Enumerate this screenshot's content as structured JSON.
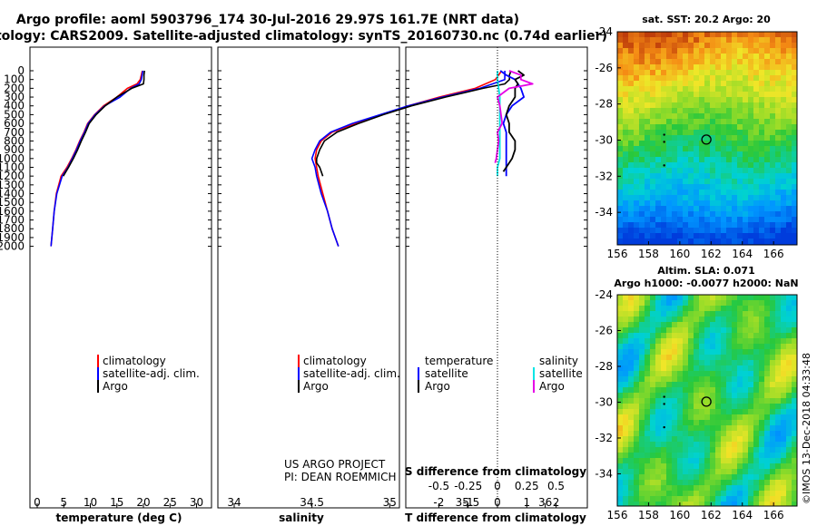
{
  "title_line1": "Argo profile: aoml 5903796_174 30-Jul-2016 29.97S 161.7E (NRT data)",
  "title_line2": "Climatology: CARS2009. Satellite-adjusted climatology: synTS_20160730.nc (0.74d earlier)",
  "colors": {
    "climatology": "#ff0000",
    "satellite": "#0000ff",
    "argo": "#000000",
    "sat_salinity": "#00e5e5",
    "argo_salinity": "#e600e6"
  },
  "depth_axis": {
    "ticks": [
      "0",
      "100",
      "200",
      "300",
      "400",
      "500",
      "600",
      "700",
      "800",
      "900",
      "1000",
      "1100",
      "1200",
      "1300",
      "1400",
      "1500",
      "1600",
      "1700",
      "1800",
      "1900",
      "2000"
    ]
  },
  "legend": {
    "climatology": "climatology",
    "satellite": "satellite-adj. clim.",
    "argo": "Argo"
  },
  "diff_legend": {
    "temperature": "temperature",
    "salinity": "salinity",
    "satellite": "satellite",
    "argo": "Argo"
  },
  "credit_line1": "US ARGO PROJECT",
  "credit_line2": "PI: DEAN ROEMMICH",
  "diff_s_label": "S difference from climatology",
  "map_top_title": "sat. SST: 20.2 Argo: 20",
  "map_bottom_title1": "Altim. SLA: 0.071",
  "map_bottom_title2": "Argo h1000: -0.0077 h2000: NaN",
  "imos_stamp": "©IMOS 13-Dec-2018 04:33:48",
  "chart_data": [
    {
      "type": "line",
      "xlabel": "temperature (deg C)",
      "ylabel": "depth",
      "xlim": [
        -2,
        32
      ],
      "ylim": [
        2050,
        -20
      ],
      "xticks": [
        "0",
        "5",
        "10",
        "15",
        "20",
        "25",
        "30"
      ],
      "series": [
        {
          "name": "climatology",
          "depth": [
            0,
            100,
            150,
            200,
            300,
            400,
            500,
            600,
            700,
            800,
            900,
            1000,
            1100,
            1200,
            1400,
            1600,
            1800,
            2000
          ],
          "values": [
            19.8,
            19.4,
            18.8,
            17.0,
            15.0,
            12.5,
            10.8,
            9.5,
            8.8,
            8.0,
            7.3,
            6.5,
            5.6,
            4.5,
            3.6,
            3.2,
            2.9,
            2.6
          ]
        },
        {
          "name": "satellite-adj. clim.",
          "depth": [
            0,
            100,
            150,
            200,
            300,
            400,
            500,
            600,
            700,
            800,
            900,
            1000,
            1100,
            1200,
            1400,
            1600,
            1800,
            2000
          ],
          "values": [
            19.9,
            19.6,
            19.2,
            17.6,
            15.6,
            12.7,
            10.9,
            9.6,
            8.9,
            8.1,
            7.4,
            6.6,
            5.8,
            4.7,
            3.7,
            3.2,
            2.9,
            2.6
          ]
        },
        {
          "name": "Argo",
          "depth": [
            0,
            50,
            100,
            150,
            200,
            300,
            400,
            500,
            600,
            700,
            800,
            900,
            1000,
            1100,
            1150,
            1200
          ],
          "values": [
            20.2,
            20.1,
            20.1,
            20.0,
            17.8,
            15.0,
            12.8,
            11.1,
            9.8,
            9.1,
            8.3,
            7.6,
            6.8,
            5.9,
            5.4,
            4.9
          ]
        }
      ]
    },
    {
      "type": "line",
      "xlabel": "salinity",
      "ylabel": "depth",
      "xlim": [
        33.85,
        36.05
      ],
      "ylim": [
        2050,
        -20
      ],
      "xticks": [
        "34",
        "34.5",
        "35",
        "35.5",
        "36"
      ],
      "series": [
        {
          "name": "climatology",
          "depth": [
            0,
            100,
            200,
            300,
            400,
            500,
            600,
            700,
            800,
            900,
            1000,
            1100,
            1200,
            1400,
            1600,
            1800,
            2000
          ],
          "values": [
            35.72,
            35.68,
            35.55,
            35.32,
            35.12,
            34.95,
            34.78,
            34.63,
            34.56,
            34.53,
            34.52,
            34.53,
            34.54,
            34.57,
            34.6,
            34.63,
            34.67
          ]
        },
        {
          "name": "satellite-adj. clim.",
          "depth": [
            0,
            100,
            200,
            300,
            400,
            500,
            600,
            700,
            800,
            900,
            1000,
            1100,
            1200,
            1400,
            1600,
            1800,
            2000
          ],
          "values": [
            35.74,
            35.74,
            35.58,
            35.34,
            35.12,
            34.94,
            34.76,
            34.62,
            34.55,
            34.52,
            34.5,
            34.52,
            34.53,
            34.56,
            34.6,
            34.63,
            34.67
          ]
        },
        {
          "name": "Argo",
          "depth": [
            0,
            50,
            100,
            150,
            200,
            300,
            400,
            500,
            600,
            700,
            800,
            900,
            1000,
            1050,
            1100,
            1150,
            1200
          ],
          "values": [
            35.78,
            35.77,
            35.77,
            35.74,
            35.6,
            35.36,
            35.14,
            34.96,
            34.8,
            34.66,
            34.58,
            34.55,
            34.53,
            34.53,
            34.55,
            34.56,
            34.57
          ]
        }
      ]
    },
    {
      "type": "line",
      "xlabel": "T difference from climatology",
      "ylabel": "depth",
      "xlim": [
        -3,
        3
      ],
      "ylim": [
        2050,
        -20
      ],
      "xticks": [
        "-2",
        "-1",
        "0",
        "1",
        "2"
      ],
      "x2label": "S difference from climatology",
      "x2ticks": [
        "-0.5",
        "-0.25",
        "0",
        "0.25",
        "0.5"
      ],
      "series": [
        {
          "name": "temperature satellite",
          "depth": [
            0,
            50,
            100,
            200,
            300,
            400,
            500,
            600,
            700,
            800,
            900,
            1000,
            1100,
            1200
          ],
          "values": [
            0.1,
            0.3,
            0.6,
            0.8,
            0.9,
            0.5,
            0.3,
            0.2,
            0.3,
            0.3,
            0.3,
            0.3,
            0.3,
            0.3
          ]
        },
        {
          "name": "temperature Argo",
          "depth": [
            0,
            50,
            100,
            150,
            200,
            300,
            400,
            500,
            600,
            700,
            800,
            900,
            1000,
            1100,
            1150
          ],
          "values": [
            0.7,
            0.9,
            0.6,
            0.7,
            0.6,
            0.6,
            0.4,
            0.3,
            0.4,
            0.4,
            0.6,
            0.6,
            0.5,
            0.3,
            0.2
          ]
        },
        {
          "name": "salinity satellite",
          "depth": [
            0,
            100,
            200,
            300,
            400,
            500,
            600,
            700,
            800,
            900,
            1000,
            1100,
            1200
          ],
          "values": [
            0.0,
            0.0,
            0.01,
            0.02,
            0.02,
            0.02,
            0.02,
            0.02,
            0.02,
            0.02,
            0.02,
            0.0,
            0.0
          ]
        },
        {
          "name": "salinity Argo",
          "depth": [
            0,
            50,
            100,
            150,
            200,
            300,
            400,
            500,
            600,
            700,
            800,
            900,
            1000,
            1050
          ],
          "values": [
            0.1,
            0.2,
            0.2,
            0.3,
            0.1,
            0.0,
            0.02,
            0.03,
            0.04,
            0.0,
            0.01,
            0.0,
            -0.01,
            -0.02
          ]
        }
      ]
    },
    {
      "type": "heatmap",
      "title": "sat. SST: 20.2 Argo: 20",
      "xlim": [
        156,
        167.5
      ],
      "ylim": [
        -35.8,
        -24
      ],
      "xticks": [
        "156",
        "158",
        "160",
        "162",
        "164",
        "166"
      ],
      "yticks": [
        "-24",
        "-26",
        "-28",
        "-30",
        "-32",
        "-34"
      ],
      "argo_position": [
        161.7,
        -29.97
      ]
    },
    {
      "type": "heatmap",
      "title": "Altim. SLA: 0.071",
      "subtitle": "Argo h1000: -0.0077 h2000: NaN",
      "xlim": [
        156,
        167.5
      ],
      "ylim": [
        -35.8,
        -24
      ],
      "xticks": [
        "156",
        "158",
        "160",
        "162",
        "164",
        "166"
      ],
      "yticks": [
        "-24",
        "-26",
        "-28",
        "-30",
        "-32",
        "-34"
      ],
      "argo_position": [
        161.7,
        -29.97
      ]
    }
  ]
}
